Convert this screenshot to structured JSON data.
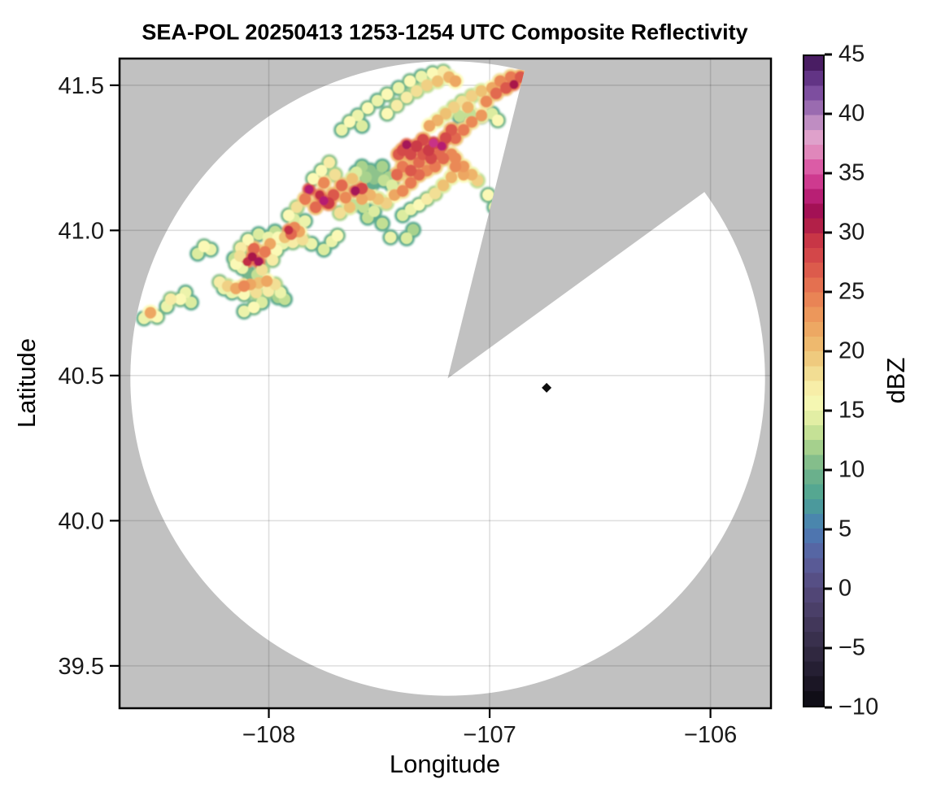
{
  "title": "SEA-POL 20250413 1253-1254 UTC Composite Reflectivity",
  "axes": {
    "xlabel": "Longitude",
    "ylabel": "Latitude",
    "x_ticks": [
      {
        "label": "−108",
        "value": -108
      },
      {
        "label": "−107",
        "value": -107
      },
      {
        "label": "−106",
        "value": -106
      }
    ],
    "y_ticks": [
      {
        "label": "41.5",
        "value": 41.5
      },
      {
        "label": "41.0",
        "value": 41.0
      },
      {
        "label": "40.5",
        "value": 40.5
      },
      {
        "label": "40.0",
        "value": 40.0
      },
      {
        "label": "39.5",
        "value": 39.5
      }
    ],
    "xlim": [
      -108.676,
      -105.726
    ],
    "ylim": [
      39.354,
      41.592
    ],
    "grid": true
  },
  "colorbar": {
    "label": "dBZ",
    "min": -10,
    "max": 45,
    "tick_values": [
      45,
      40,
      35,
      30,
      25,
      20,
      15,
      10,
      5,
      0,
      -5,
      -10
    ],
    "tick_labels": [
      "45",
      "40",
      "35",
      "30",
      "25",
      "20",
      "15",
      "10",
      "5",
      "0",
      "−5",
      "−10"
    ],
    "step": 1.25
  },
  "chart_data": {
    "type": "heatmap",
    "description": "Radar composite reflectivity PPI on lon/lat map; white disc is scanned area, gray is no coverage, wedge sector is blocked.",
    "colormap": [
      [
        -10,
        "#0a0a10"
      ],
      [
        -7.5,
        "#201a2c"
      ],
      [
        -5,
        "#352c46"
      ],
      [
        -2.5,
        "#463b61"
      ],
      [
        0,
        "#544a7d"
      ],
      [
        2.5,
        "#5a5f9e"
      ],
      [
        5,
        "#4a7cb5"
      ],
      [
        7.5,
        "#4ba293"
      ],
      [
        10,
        "#74b58a"
      ],
      [
        12.5,
        "#b5d98e"
      ],
      [
        14,
        "#dceca0"
      ],
      [
        16,
        "#fbf9b6"
      ],
      [
        18,
        "#f2df95"
      ],
      [
        20,
        "#eec173"
      ],
      [
        22.5,
        "#eda05e"
      ],
      [
        25,
        "#e87a52"
      ],
      [
        27.5,
        "#d8504a"
      ],
      [
        30,
        "#c22d45"
      ],
      [
        31.5,
        "#9c0d4c"
      ],
      [
        33,
        "#b61c71"
      ],
      [
        35,
        "#d9479c"
      ],
      [
        37,
        "#e08bbd"
      ],
      [
        38.5,
        "#dfa8d0"
      ],
      [
        40,
        "#a87ab8"
      ],
      [
        42.5,
        "#6f3f96"
      ],
      [
        45,
        "#3c1152"
      ]
    ],
    "no_data_color": "#c1c1c1",
    "grid_color": "rgba(0,0,0,0.13)",
    "radar": {
      "center_lon": -107.19,
      "center_lat": 40.49,
      "range_deg_lat": 1.093,
      "blocked_sector_azimuth_deg": [
        14,
        54
      ]
    },
    "site_marker": {
      "lon": -106.742,
      "lat": 40.458,
      "color": "#0d0d0d"
    },
    "points_format": [
      "lon",
      "lat",
      "dBZ"
    ],
    "points": [
      [
        -108.565,
        40.697,
        15
      ],
      [
        -108.536,
        40.716,
        22
      ],
      [
        -108.506,
        40.702,
        16
      ],
      [
        -108.462,
        40.738,
        15
      ],
      [
        -108.444,
        40.763,
        17
      ],
      [
        -108.4,
        40.763,
        16
      ],
      [
        -108.377,
        40.786,
        15
      ],
      [
        -108.352,
        40.752,
        14
      ],
      [
        -108.322,
        40.92,
        14
      ],
      [
        -108.293,
        40.945,
        16
      ],
      [
        -108.263,
        40.934,
        15
      ],
      [
        -108.223,
        40.822,
        17
      ],
      [
        -108.186,
        40.808,
        19
      ],
      [
        -108.149,
        40.8,
        22
      ],
      [
        -108.112,
        40.808,
        24
      ],
      [
        -108.083,
        40.814,
        22
      ],
      [
        -108.046,
        40.819,
        20
      ],
      [
        -108.009,
        40.825,
        22
      ],
      [
        -107.972,
        40.814,
        18
      ],
      [
        -107.947,
        40.786,
        15
      ],
      [
        -108.002,
        40.791,
        17
      ],
      [
        -108.057,
        40.786,
        18
      ],
      [
        -108.112,
        40.78,
        16
      ],
      [
        -108.167,
        40.786,
        15
      ],
      [
        -108.204,
        40.8,
        15
      ],
      [
        -107.958,
        40.769,
        12
      ],
      [
        -107.928,
        40.763,
        13
      ],
      [
        -108.068,
        40.735,
        16
      ],
      [
        -108.112,
        40.721,
        15
      ],
      [
        -108.031,
        40.752,
        14
      ],
      [
        -108.075,
        40.909,
        31
      ],
      [
        -108.046,
        40.892,
        32
      ],
      [
        -108.098,
        40.892,
        30
      ],
      [
        -108.068,
        40.937,
        26
      ],
      [
        -108.017,
        40.926,
        25
      ],
      [
        -107.994,
        40.954,
        22
      ],
      [
        -108.131,
        40.912,
        18
      ],
      [
        -108.149,
        40.884,
        16
      ],
      [
        -108.12,
        40.87,
        15
      ],
      [
        -108.031,
        40.864,
        18
      ],
      [
        -107.983,
        40.898,
        17
      ],
      [
        -107.965,
        40.931,
        16
      ],
      [
        -108.002,
        40.976,
        15
      ],
      [
        -108.046,
        40.987,
        14
      ],
      [
        -108.094,
        40.968,
        16
      ],
      [
        -108.127,
        40.94,
        17
      ],
      [
        -108.157,
        40.903,
        13
      ],
      [
        -108.053,
        40.847,
        13
      ],
      [
        -108.087,
        40.85,
        10
      ],
      [
        -107.928,
        40.976,
        20
      ],
      [
        -107.899,
        40.987,
        26
      ],
      [
        -107.884,
        41.01,
        24
      ],
      [
        -107.862,
        40.996,
        22
      ],
      [
        -107.847,
        40.968,
        18
      ],
      [
        -107.891,
        40.959,
        17
      ],
      [
        -107.936,
        40.954,
        15
      ],
      [
        -107.958,
        40.976,
        16
      ],
      [
        -107.972,
        40.996,
        13
      ],
      [
        -107.836,
        41.032,
        15
      ],
      [
        -107.884,
        41.038,
        14
      ],
      [
        -107.91,
        41.001,
        30
      ],
      [
        -107.807,
        40.954,
        15
      ],
      [
        -107.751,
        40.934,
        14
      ],
      [
        -107.715,
        40.962,
        15
      ],
      [
        -107.689,
        40.982,
        16
      ],
      [
        -107.818,
        41.141,
        33
      ],
      [
        -107.77,
        41.122,
        30
      ],
      [
        -107.751,
        41.102,
        33
      ],
      [
        -107.729,
        41.094,
        29
      ],
      [
        -107.788,
        41.08,
        26
      ],
      [
        -107.836,
        41.108,
        25
      ],
      [
        -107.707,
        41.122,
        27
      ],
      [
        -107.67,
        41.155,
        26
      ],
      [
        -107.622,
        41.178,
        20
      ],
      [
        -107.7,
        41.192,
        18
      ],
      [
        -107.751,
        41.164,
        24
      ],
      [
        -107.873,
        41.08,
        18
      ],
      [
        -107.91,
        41.052,
        16
      ],
      [
        -107.678,
        41.06,
        18
      ],
      [
        -107.634,
        41.08,
        20
      ],
      [
        -107.652,
        41.113,
        24
      ],
      [
        -107.608,
        41.136,
        32
      ],
      [
        -107.578,
        41.144,
        28
      ],
      [
        -107.799,
        41.178,
        16
      ],
      [
        -107.762,
        41.206,
        16
      ],
      [
        -107.726,
        41.234,
        17
      ],
      [
        -107.541,
        41.206,
        11
      ],
      [
        -107.578,
        41.22,
        12
      ],
      [
        -107.505,
        41.192,
        11
      ],
      [
        -107.486,
        41.22,
        12
      ],
      [
        -107.457,
        41.183,
        12
      ],
      [
        -107.523,
        41.178,
        11
      ],
      [
        -107.53,
        41.161,
        9
      ],
      [
        -107.56,
        41.183,
        12
      ],
      [
        -107.479,
        41.172,
        13
      ],
      [
        -107.442,
        41.155,
        14
      ],
      [
        -107.604,
        41.2,
        14
      ],
      [
        -107.578,
        41.108,
        22
      ],
      [
        -107.541,
        41.122,
        21
      ],
      [
        -107.505,
        41.108,
        20
      ],
      [
        -107.468,
        41.094,
        19
      ],
      [
        -107.431,
        41.122,
        22
      ],
      [
        -107.394,
        41.136,
        24
      ],
      [
        -107.357,
        41.164,
        25
      ],
      [
        -107.32,
        41.192,
        26
      ],
      [
        -107.284,
        41.206,
        24
      ],
      [
        -107.247,
        41.22,
        25
      ],
      [
        -107.21,
        41.248,
        26
      ],
      [
        -107.173,
        41.262,
        24
      ],
      [
        -107.42,
        41.192,
        26
      ],
      [
        -107.394,
        41.22,
        25
      ],
      [
        -107.357,
        41.206,
        27
      ],
      [
        -107.32,
        41.234,
        26
      ],
      [
        -107.302,
        41.262,
        27
      ],
      [
        -107.265,
        41.248,
        28
      ],
      [
        -107.228,
        41.262,
        26
      ],
      [
        -107.412,
        41.262,
        27
      ],
      [
        -107.376,
        41.295,
        32
      ],
      [
        -107.394,
        41.276,
        28
      ],
      [
        -107.357,
        41.262,
        28
      ],
      [
        -107.331,
        41.29,
        29
      ],
      [
        -107.302,
        41.312,
        28
      ],
      [
        -107.254,
        41.301,
        34
      ],
      [
        -107.217,
        41.29,
        33
      ],
      [
        -107.276,
        41.276,
        29
      ],
      [
        -107.199,
        41.318,
        28
      ],
      [
        -107.173,
        41.346,
        27
      ],
      [
        -107.155,
        41.318,
        26
      ],
      [
        -107.118,
        41.346,
        25
      ],
      [
        -107.081,
        41.374,
        24
      ],
      [
        -107.037,
        41.396,
        23
      ],
      [
        -107.136,
        41.393,
        13
      ],
      [
        -107.088,
        41.402,
        13
      ],
      [
        -107.037,
        41.393,
        13
      ],
      [
        -106.989,
        41.402,
        14
      ],
      [
        -106.963,
        41.379,
        16
      ],
      [
        -107.015,
        41.444,
        24
      ],
      [
        -106.971,
        41.472,
        26
      ],
      [
        -106.926,
        41.491,
        27
      ],
      [
        -106.89,
        41.503,
        31
      ],
      [
        -106.86,
        41.528,
        27
      ],
      [
        -106.904,
        41.528,
        25
      ],
      [
        -106.952,
        41.514,
        24
      ],
      [
        -106.989,
        41.491,
        22
      ],
      [
        -107.037,
        41.48,
        20
      ],
      [
        -107.081,
        41.463,
        19
      ],
      [
        -107.125,
        41.444,
        18
      ],
      [
        -107.162,
        41.424,
        19
      ],
      [
        -107.199,
        41.402,
        20
      ],
      [
        -107.236,
        41.379,
        21
      ],
      [
        -107.273,
        41.36,
        22
      ],
      [
        -107.099,
        41.424,
        21
      ],
      [
        -107.67,
        41.346,
        15
      ],
      [
        -107.634,
        41.374,
        16
      ],
      [
        -107.597,
        41.396,
        15
      ],
      [
        -107.552,
        41.421,
        16
      ],
      [
        -107.508,
        41.447,
        15
      ],
      [
        -107.464,
        41.469,
        16
      ],
      [
        -107.412,
        41.491,
        15
      ],
      [
        -107.361,
        41.514,
        16
      ],
      [
        -107.309,
        41.53,
        15
      ],
      [
        -107.258,
        41.542,
        16
      ],
      [
        -107.21,
        41.547,
        17
      ],
      [
        -107.376,
        41.458,
        17
      ],
      [
        -107.331,
        41.48,
        18
      ],
      [
        -107.284,
        41.5,
        19
      ],
      [
        -107.236,
        41.514,
        20
      ],
      [
        -107.184,
        41.528,
        21
      ],
      [
        -107.155,
        41.514,
        22
      ],
      [
        -107.42,
        41.43,
        17
      ],
      [
        -107.464,
        41.402,
        16
      ],
      [
        -107.578,
        41.36,
        14
      ],
      [
        -107.155,
        41.248,
        24
      ],
      [
        -107.118,
        41.22,
        23
      ],
      [
        -107.081,
        41.192,
        21
      ],
      [
        -107.055,
        41.172,
        19
      ],
      [
        -107.007,
        41.122,
        16
      ],
      [
        -106.978,
        41.08,
        15
      ],
      [
        -107.118,
        41.192,
        22
      ],
      [
        -107.155,
        41.22,
        24
      ],
      [
        -107.173,
        41.183,
        21
      ],
      [
        -107.21,
        41.155,
        20
      ],
      [
        -107.247,
        41.127,
        18
      ],
      [
        -107.284,
        41.108,
        17
      ],
      [
        -107.32,
        41.088,
        16
      ],
      [
        -107.357,
        41.072,
        15
      ],
      [
        -107.394,
        41.052,
        14
      ],
      [
        -107.486,
        41.024,
        13
      ],
      [
        -107.346,
        41.002,
        12
      ],
      [
        -107.449,
        40.976,
        15
      ],
      [
        -107.376,
        40.973,
        14
      ],
      [
        -107.615,
        41.088,
        13
      ],
      [
        -107.571,
        41.08,
        13
      ],
      [
        -107.523,
        41.066,
        14
      ],
      [
        -107.552,
        41.044,
        13
      ]
    ]
  }
}
